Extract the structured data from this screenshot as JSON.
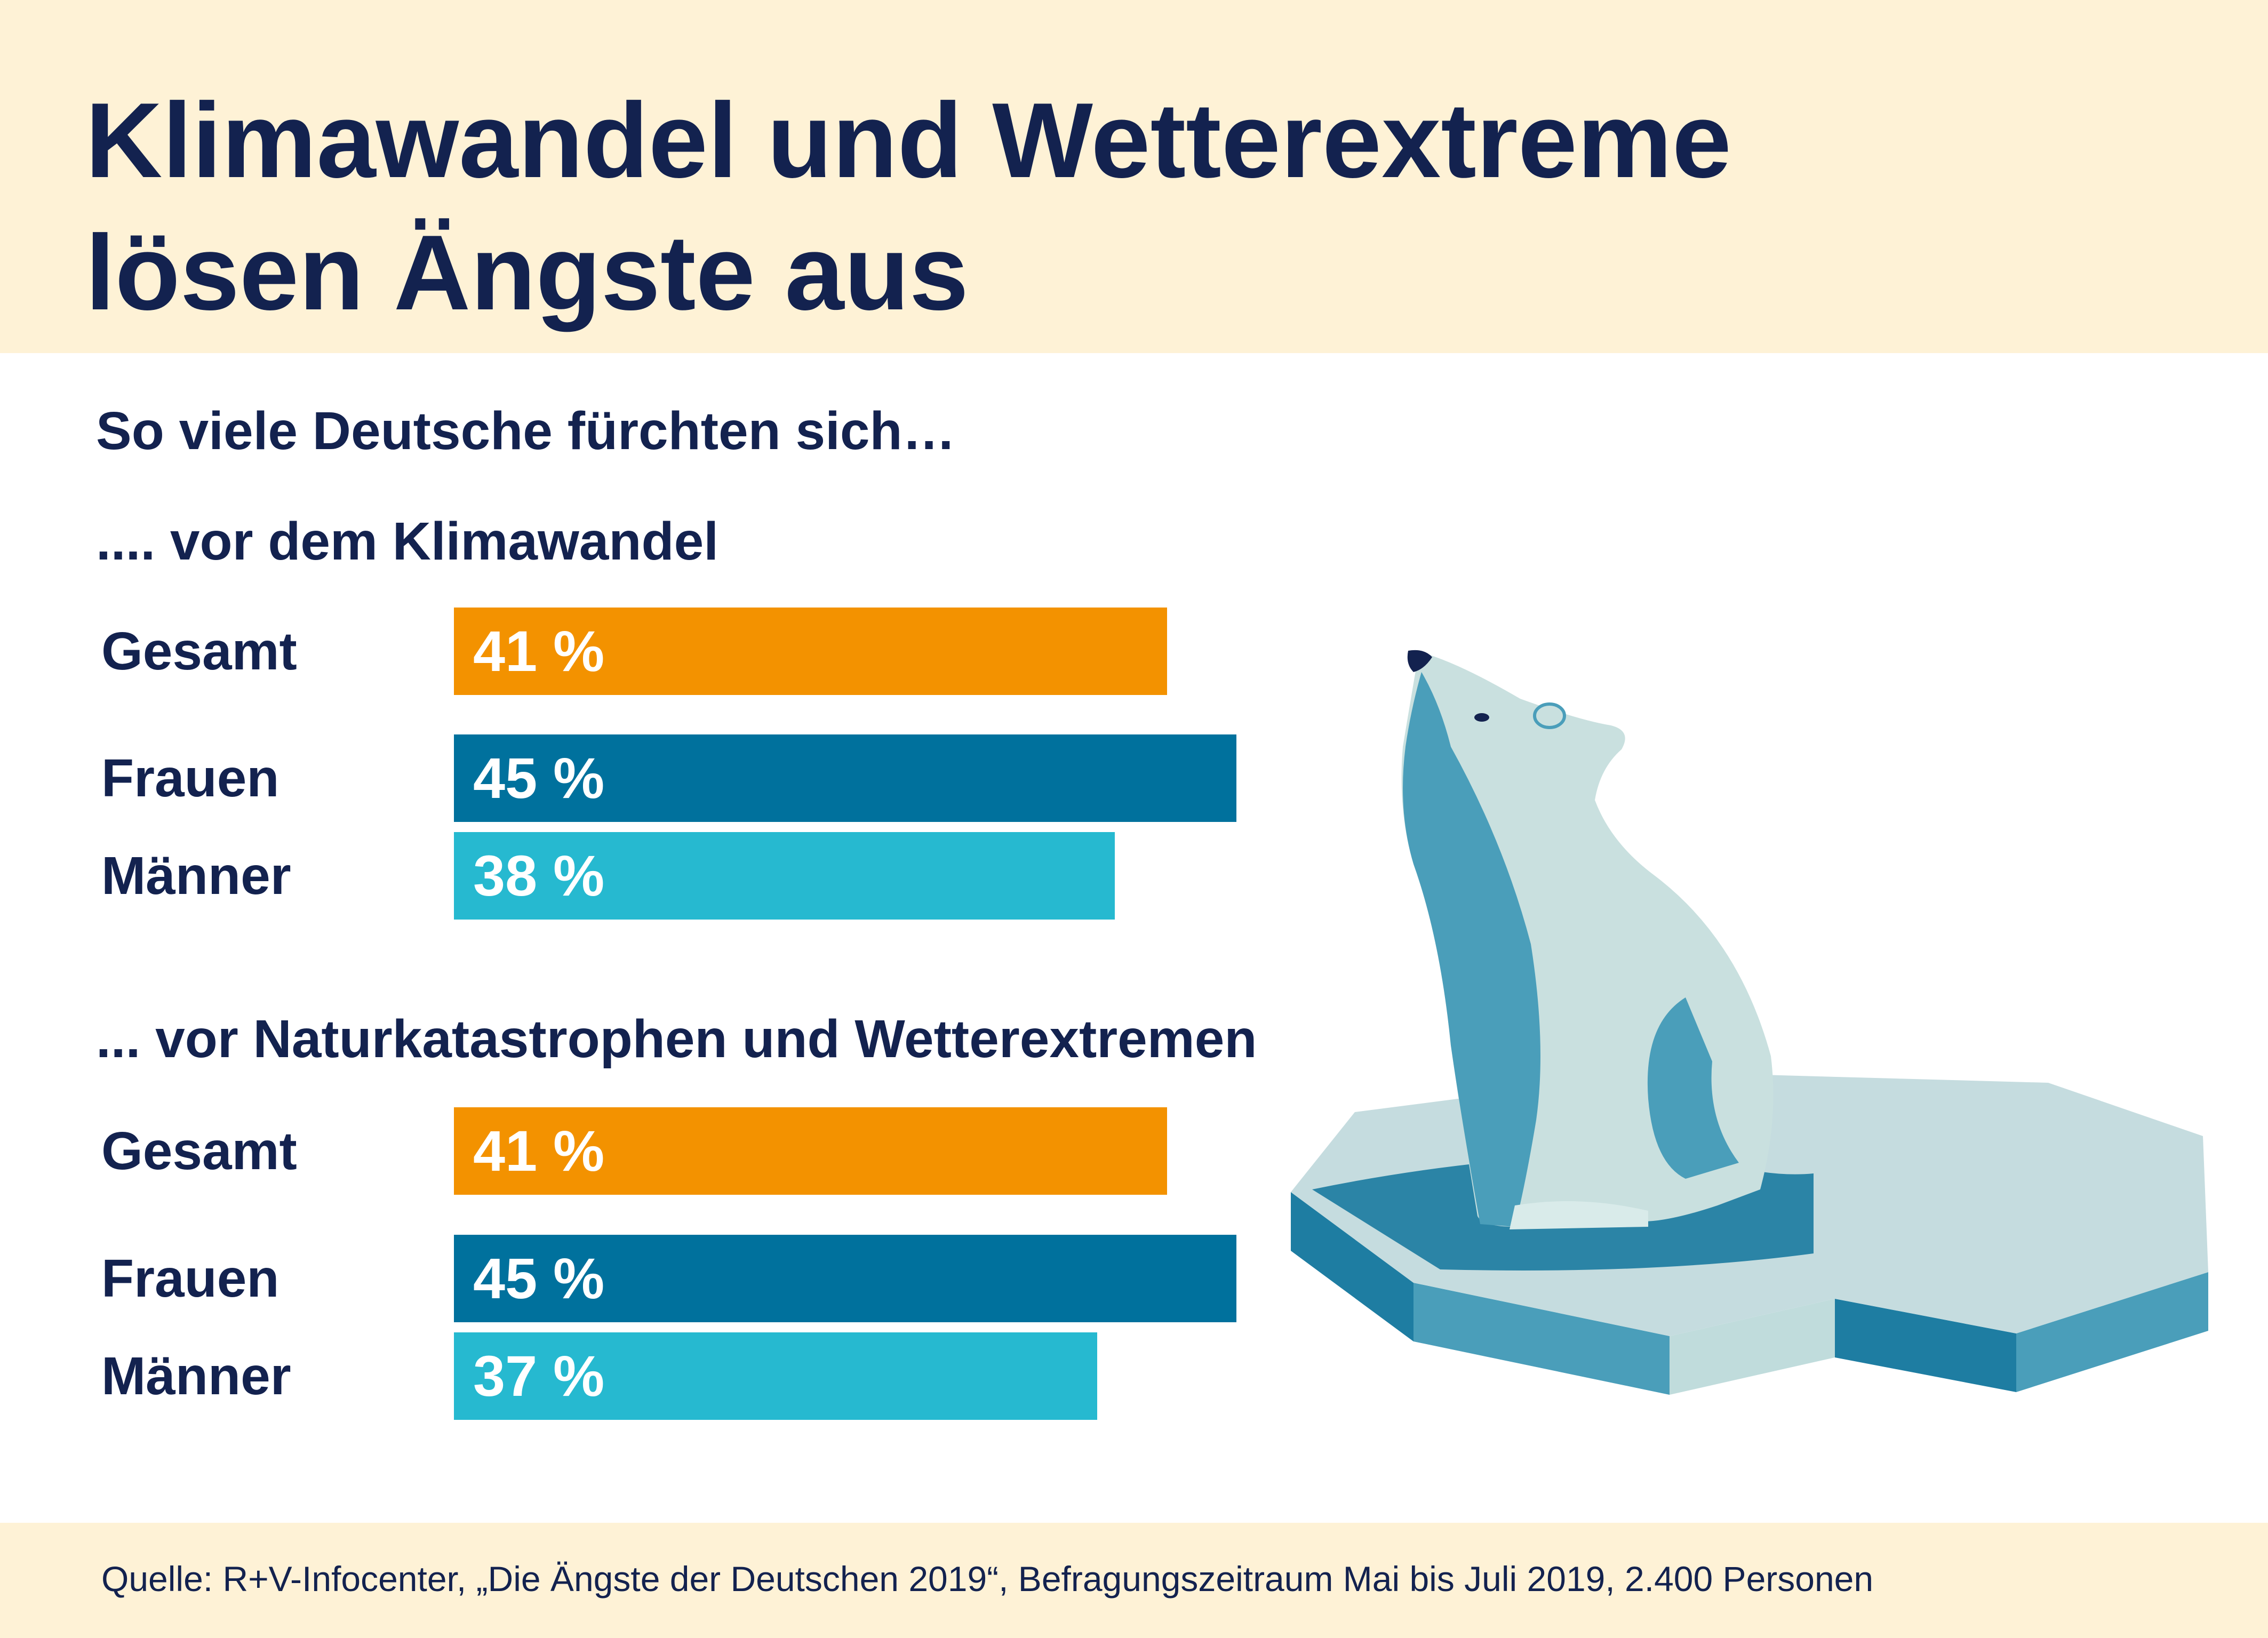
{
  "header": {
    "title_line1": "Klimawandel und Wetterextreme",
    "title_line2": "lösen Ängste aus"
  },
  "intro": "So viele Deutsche fürchten sich…",
  "colors": {
    "navy": "#13224f",
    "band": "#fef2d6",
    "gesamt": "#f39200",
    "frauen": "#00719d",
    "maenner": "#26b9d0"
  },
  "chart_data": [
    {
      "type": "bar",
      "orientation": "horizontal",
      "title": ".... vor dem Klimawandel",
      "categories": [
        "Gesamt",
        "Frauen",
        "Männer"
      ],
      "values": [
        41,
        45,
        38
      ],
      "value_labels": [
        "41 %",
        "45 %",
        "38 %"
      ],
      "unit": "%",
      "colors": [
        "#f39200",
        "#00719d",
        "#26b9d0"
      ],
      "xlim": [
        0,
        100
      ],
      "grid": false,
      "legend": "none"
    },
    {
      "type": "bar",
      "orientation": "horizontal",
      "title": "... vor Naturkatastrophen und Wetterextremen",
      "categories": [
        "Gesamt",
        "Frauen",
        "Männer"
      ],
      "values": [
        41,
        45,
        37
      ],
      "value_labels": [
        "41 %",
        "45 %",
        "37 %"
      ],
      "unit": "%",
      "colors": [
        "#f39200",
        "#00719d",
        "#26b9d0"
      ],
      "xlim": [
        0,
        100
      ],
      "grid": false,
      "legend": "none"
    }
  ],
  "footer": {
    "source": "Quelle: R+V-Infocenter, „Die Ängste der Deutschen 2019“, Befragungszeitraum Mai bis Juli 2019, 2.400 Personen"
  },
  "illustration": {
    "icon": "polar-bear-on-ice-floe-icon",
    "colors": [
      "#c9e0df",
      "#4a9eba",
      "#1e7da2",
      "#13224f"
    ]
  }
}
